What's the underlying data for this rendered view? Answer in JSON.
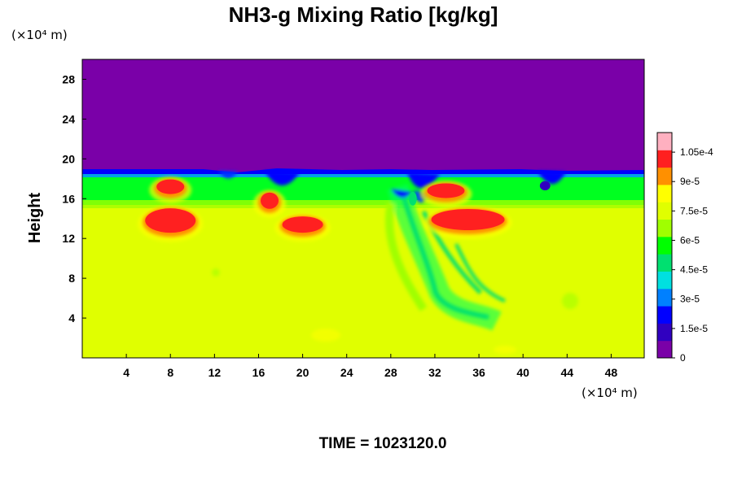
{
  "chart_data": {
    "type": "heatmap",
    "title": "NH3-g Mixing Ratio [kg/kg]",
    "ylabel": "Height",
    "xunit": "(×10⁴ m)",
    "yunit": "(×10⁴ m)",
    "x_ticks": [
      "4",
      "8",
      "12",
      "16",
      "20",
      "24",
      "28",
      "32",
      "36",
      "40",
      "44",
      "48"
    ],
    "y_ticks": [
      "4",
      "8",
      "12",
      "16",
      "20",
      "24",
      "28"
    ],
    "xlim": [
      0,
      51
    ],
    "ylim": [
      0,
      30
    ],
    "colorbar": {
      "ticks": [
        "0",
        "1.5e-5",
        "3e-5",
        "4.5e-5",
        "6e-5",
        "7.5e-5",
        "9e-5",
        "1.05e-4"
      ],
      "range": [
        0,
        0.000115
      ],
      "colors": [
        "#7a00a8",
        "#3000c0",
        "#0000ff",
        "#0080ff",
        "#00e0e0",
        "#00e070",
        "#00ff00",
        "#a0ff00",
        "#e0ff00",
        "#ffff00",
        "#ff9000",
        "#ff2020",
        "#ffb0c0"
      ]
    },
    "layers": {
      "upper_value": 0,
      "lower_value": 7.8e-05,
      "interface_height": 18.3,
      "green_band_bottom": 15.2,
      "features": [
        {
          "x": 8,
          "y": 13.8,
          "value": 0.00011
        },
        {
          "x": 35,
          "y": 13.9,
          "value": 0.000108
        },
        {
          "x": 20,
          "y": 13.4,
          "value": 0.000108
        },
        {
          "x": 33,
          "y": 16.8,
          "value": 0.000108
        },
        {
          "x": 8,
          "y": 17.2,
          "value": 0.000105
        },
        {
          "x": 17,
          "y": 15.8,
          "value": 0.000105
        },
        {
          "x": 30,
          "y": 16,
          "value": 4.5e-05
        },
        {
          "x": 42,
          "y": 17.3,
          "value": 1e-05
        }
      ]
    }
  },
  "footer": {
    "time_label": "TIME = 1023120.0"
  }
}
